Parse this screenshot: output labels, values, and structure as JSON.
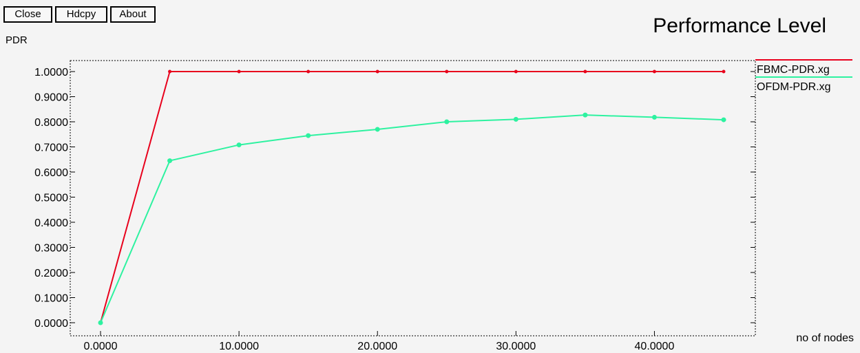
{
  "toolbar": {
    "close_label": "Close",
    "hdcpy_label": "Hdcpy",
    "about_label": "About"
  },
  "chart_data": {
    "type": "line",
    "title": "Performance Level",
    "ylabel": "PDR",
    "xlabel": "no of nodes",
    "xlim": [
      0,
      45
    ],
    "ylim": [
      0,
      1
    ],
    "x_ticks": [
      0,
      10,
      20,
      30,
      40
    ],
    "x_tick_labels": [
      "0.0000",
      "10.0000",
      "20.0000",
      "30.0000",
      "40.0000"
    ],
    "y_ticks": [
      0,
      0.1,
      0.2,
      0.3,
      0.4,
      0.5,
      0.6,
      0.7,
      0.8,
      0.9,
      1.0
    ],
    "y_tick_labels": [
      "0.0000",
      "0.1000",
      "0.2000",
      "0.3000",
      "0.4000",
      "0.5000",
      "0.6000",
      "0.7000",
      "0.8000",
      "0.9000",
      "1.0000"
    ],
    "grid": false,
    "legend_position": "right",
    "series": [
      {
        "name": "FBMC-PDR.xg",
        "color": "#e8001c",
        "x": [
          0,
          5,
          10,
          15,
          20,
          25,
          30,
          35,
          40,
          45
        ],
        "y": [
          0.0,
          1.0,
          1.0,
          1.0,
          1.0,
          1.0,
          1.0,
          1.0,
          1.0,
          1.0
        ]
      },
      {
        "name": "OFDM-PDR.xg",
        "color": "#2df2a0",
        "x": [
          0,
          5,
          10,
          15,
          20,
          25,
          30,
          35,
          40,
          45
        ],
        "y": [
          0.0,
          0.645,
          0.708,
          0.745,
          0.77,
          0.8,
          0.81,
          0.827,
          0.818,
          0.808
        ]
      }
    ]
  }
}
